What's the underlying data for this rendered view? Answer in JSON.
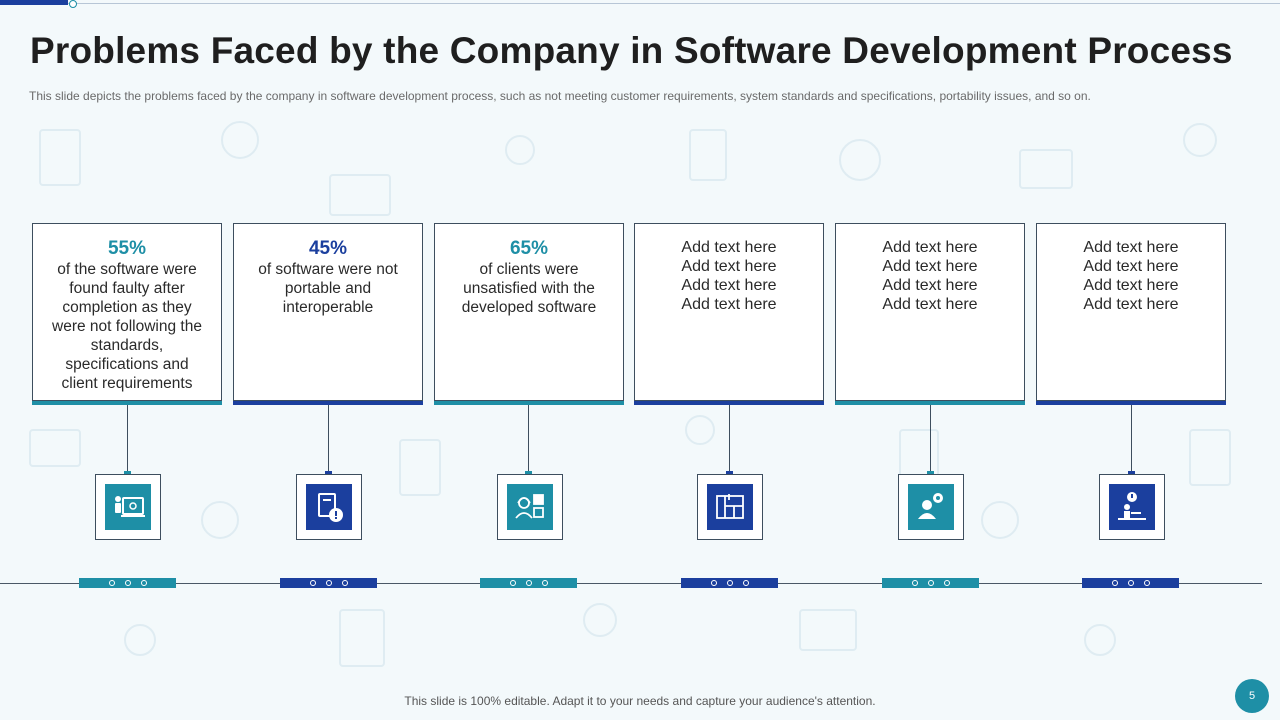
{
  "title": "Problems Faced by the Company in Software Development Process",
  "subtitle": "This slide depicts the problems faced by the company in software development  process, such as not meeting customer requirements, system standards and specifications, portability issues, and so on.",
  "cards": [
    {
      "percent": "55%",
      "lines": [
        "of the software were",
        "found faulty  after",
        "completion as they",
        "were not following the",
        "standards,",
        "specifications and",
        "client requirements"
      ],
      "accent": "teal",
      "icon": "developer-computer-icon"
    },
    {
      "percent": "45%",
      "lines": [
        "of software were not",
        "portable and",
        "interoperable"
      ],
      "accent": "navy",
      "icon": "document-warning-icon"
    },
    {
      "percent": "65%",
      "lines": [
        "of clients were",
        "unsatisfied with the",
        "developed software"
      ],
      "accent": "teal",
      "icon": "support-agent-icon"
    },
    {
      "percent": "",
      "lines": [
        "Add text here",
        "Add text here",
        "Add text here",
        "Add text here"
      ],
      "accent": "navy",
      "icon": "blueprint-plan-icon"
    },
    {
      "percent": "",
      "lines": [
        "Add text here",
        "Add text here",
        "Add text here",
        "Add text here"
      ],
      "accent": "teal",
      "icon": "user-settings-icon"
    },
    {
      "percent": "",
      "lines": [
        "Add text here",
        "Add text here",
        "Add text here",
        "Add text here"
      ],
      "accent": "navy",
      "icon": "user-alert-workstation-icon"
    }
  ],
  "footer": "This slide is 100% editable. Adapt it to your needs and capture your audience's attention.",
  "page_number": "5",
  "colors": {
    "teal": "#1e8fa6",
    "navy": "#1b3f9e",
    "background": "#f3f9fb"
  }
}
